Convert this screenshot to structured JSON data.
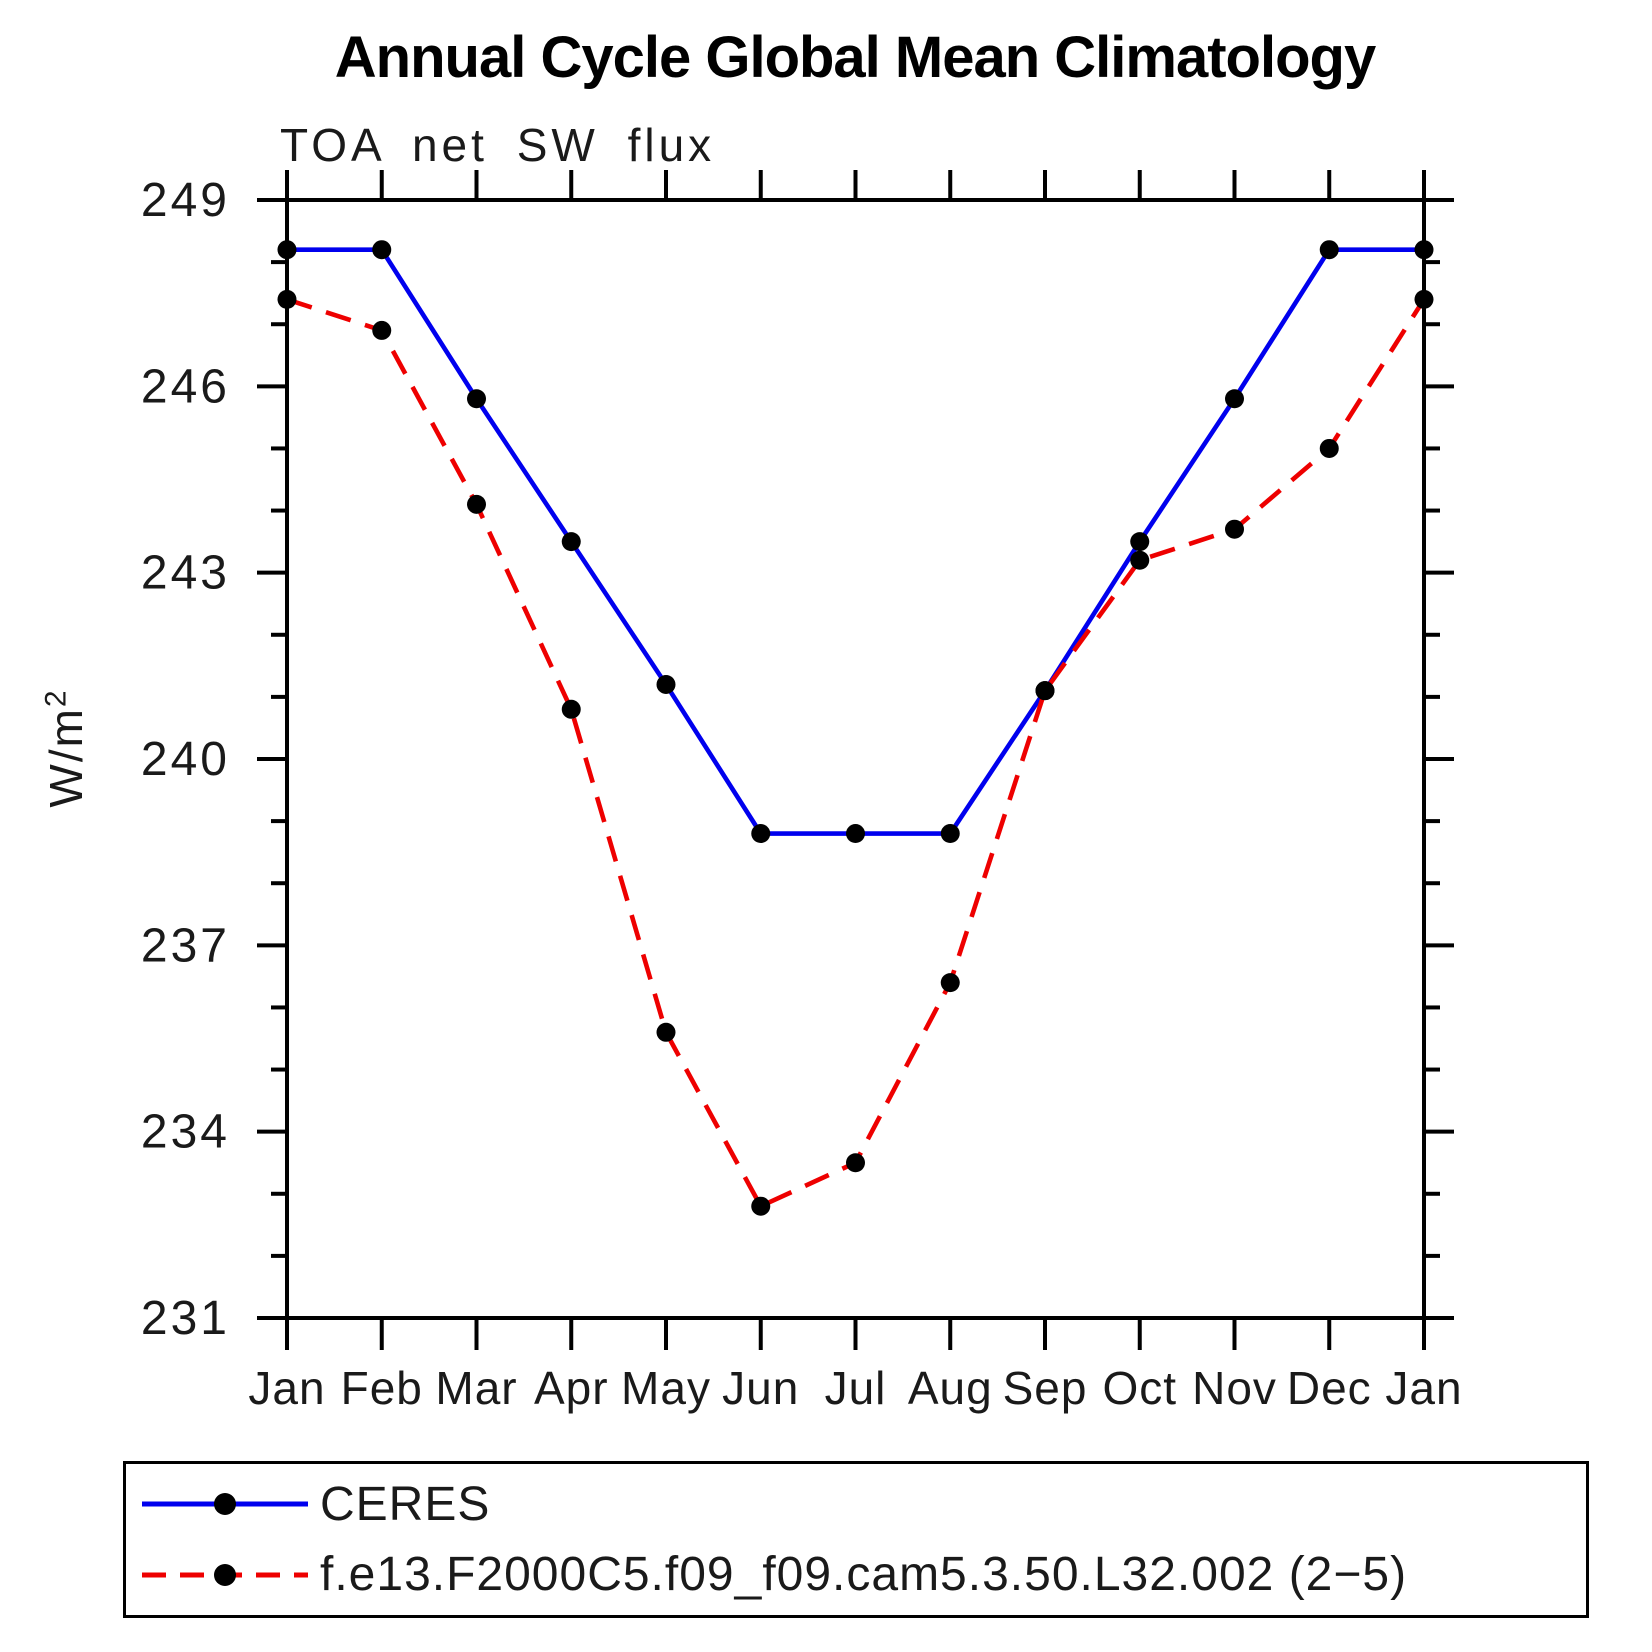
{
  "header": {
    "title": "Annual Cycle Global Mean Climatology"
  },
  "plot": {
    "subtitle": "TOA net SW flux",
    "ylabel_base": "W/m",
    "ylabel_exp": "2"
  },
  "legend": {
    "items": [
      {
        "label": "CERES"
      },
      {
        "label": "f.e13.F2000C5.f09_f09.cam5.3.50.L32.002 (2−5)"
      }
    ]
  },
  "chart_data": {
    "type": "line",
    "title": "Annual Cycle Global Mean Climatology",
    "subtitle": "TOA net SW flux",
    "ylabel": "W/m²",
    "xlabel": "",
    "categories": [
      "Jan",
      "Feb",
      "Mar",
      "Apr",
      "May",
      "Jun",
      "Jul",
      "Aug",
      "Sep",
      "Oct",
      "Nov",
      "Dec",
      "Jan"
    ],
    "series": [
      {
        "name": "CERES",
        "color": "#0000ee",
        "line_style": "solid",
        "marker": "filled-circle",
        "values": [
          248.2,
          248.2,
          245.8,
          243.5,
          241.2,
          238.8,
          238.8,
          238.8,
          241.1,
          243.5,
          245.8,
          248.2,
          248.2
        ]
      },
      {
        "name": "f.e13.F2000C5.f09_f09.cam5.3.50.L32.002 (2−5)",
        "color": "#ee0000",
        "line_style": "dashed",
        "marker": "filled-circle",
        "values": [
          247.4,
          246.9,
          244.1,
          240.8,
          235.6,
          232.8,
          233.5,
          236.4,
          241.1,
          243.2,
          243.7,
          245.0,
          247.4
        ]
      }
    ],
    "ylim": [
      231,
      249
    ],
    "y_major_step": 3,
    "y_minor_step": 1,
    "grid": "off",
    "legend_position": "bottom",
    "marker_color": "#000000",
    "axis_color": "#000000"
  }
}
